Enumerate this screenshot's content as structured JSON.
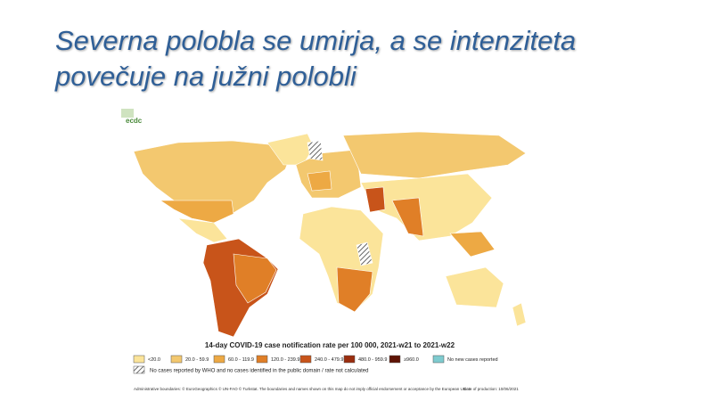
{
  "title": [
    "Severna polobla se umirja, a se intenziteta",
    "povečuje na južni polobli"
  ],
  "logo": "ecdc",
  "map": {
    "title": "14-day COVID-19 case notification rate per 100 000, 2021-w21 to 2021-w22",
    "legend": [
      {
        "label": "<20.0",
        "color": "#fbe49a"
      },
      {
        "label": "20.0 - 59.9",
        "color": "#f3c86f"
      },
      {
        "label": "60.0 - 119.9",
        "color": "#eda944"
      },
      {
        "label": "120.0 - 239.9",
        "color": "#e07f27"
      },
      {
        "label": "240.0 - 479.9",
        "color": "#c8541a"
      },
      {
        "label": "480.0 - 959.9",
        "color": "#9a2d0e"
      },
      {
        "label": "≥960.0",
        "color": "#5e1305"
      },
      {
        "label": "No new cases reported",
        "color": "#7ecbcf"
      }
    ],
    "hatched_label": "No cases reported by WHO and no cases identified in the public domain / rate not calculated",
    "footer": "Administrative boundaries: © EuroGeographics © UN-FAO © Turkstat. The boundaries and names shown on this map do not imply official endorsement or acceptance by the European Union.",
    "date": "Date of production: 10/06/2021"
  }
}
